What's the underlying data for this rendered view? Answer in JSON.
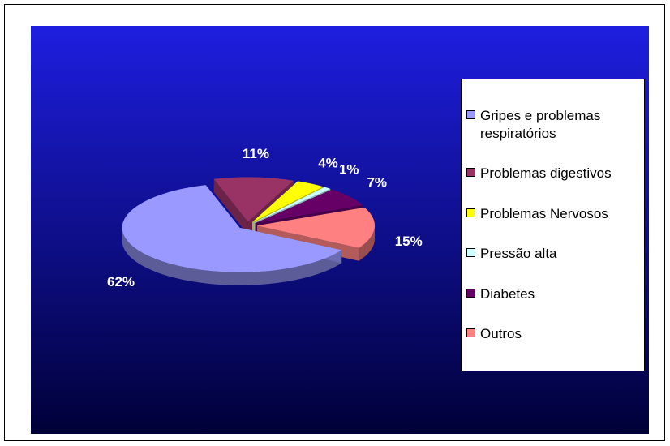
{
  "chart_data": {
    "type": "pie",
    "categories": [
      "Gripes e problemas respiratórios",
      "Problemas digestivos",
      "Problemas Nervosos",
      "Pressão alta",
      "Diabetes",
      "Outros"
    ],
    "values": [
      62,
      11,
      4,
      1,
      7,
      15
    ],
    "value_labels": [
      "62%",
      "11%",
      "4%",
      "1%",
      "7%",
      "15%"
    ],
    "colors": [
      "#9999ff",
      "#993366",
      "#ffff00",
      "#ccffff",
      "#660066",
      "#ff8080"
    ],
    "legend": "right"
  }
}
